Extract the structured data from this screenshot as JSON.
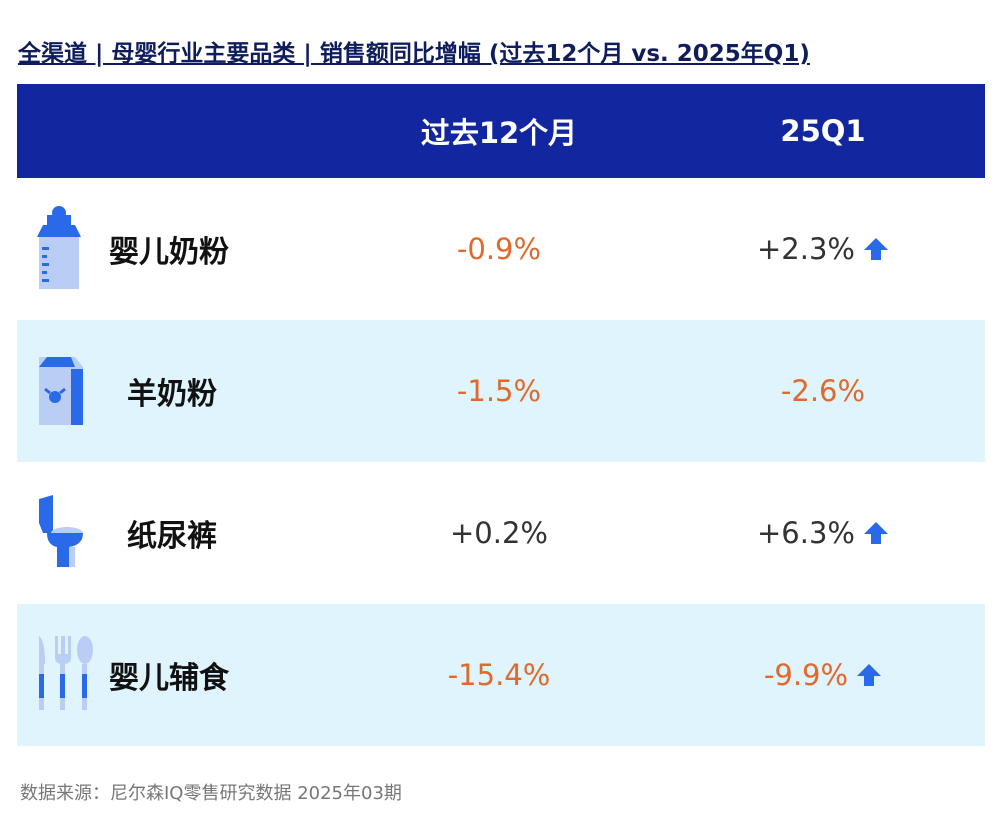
{
  "title": "全渠道 | 母婴行业主要品类 | 销售额同比增幅 (过去12个月 vs. 2025年Q1)",
  "colors": {
    "header": "#1226a0",
    "negative": "#e0692c",
    "positive": "#333333",
    "arrow": "#2a6ae8",
    "alt_row": "#dff4fd"
  },
  "chart_data": {
    "type": "table",
    "columns": [
      "",
      "过去12个月",
      "25Q1"
    ],
    "rows": [
      {
        "category": "婴儿奶粉",
        "icon": "baby-bottle-icon",
        "past12": "-0.9%",
        "q1": "+2.3%",
        "q1_arrow": true
      },
      {
        "category": "羊奶粉",
        "icon": "milk-carton-icon",
        "past12": "-1.5%",
        "q1": "-2.6%",
        "q1_arrow": false
      },
      {
        "category": "纸尿裤",
        "icon": "toilet-icon",
        "past12": "+0.2%",
        "q1": "+6.3%",
        "q1_arrow": true
      },
      {
        "category": "婴儿辅食",
        "icon": "cutlery-icon",
        "past12": "-15.4%",
        "q1": "-9.9%",
        "q1_arrow": true
      }
    ]
  },
  "source": "数据来源：尼尔森IQ零售研究数据 2025年03期"
}
